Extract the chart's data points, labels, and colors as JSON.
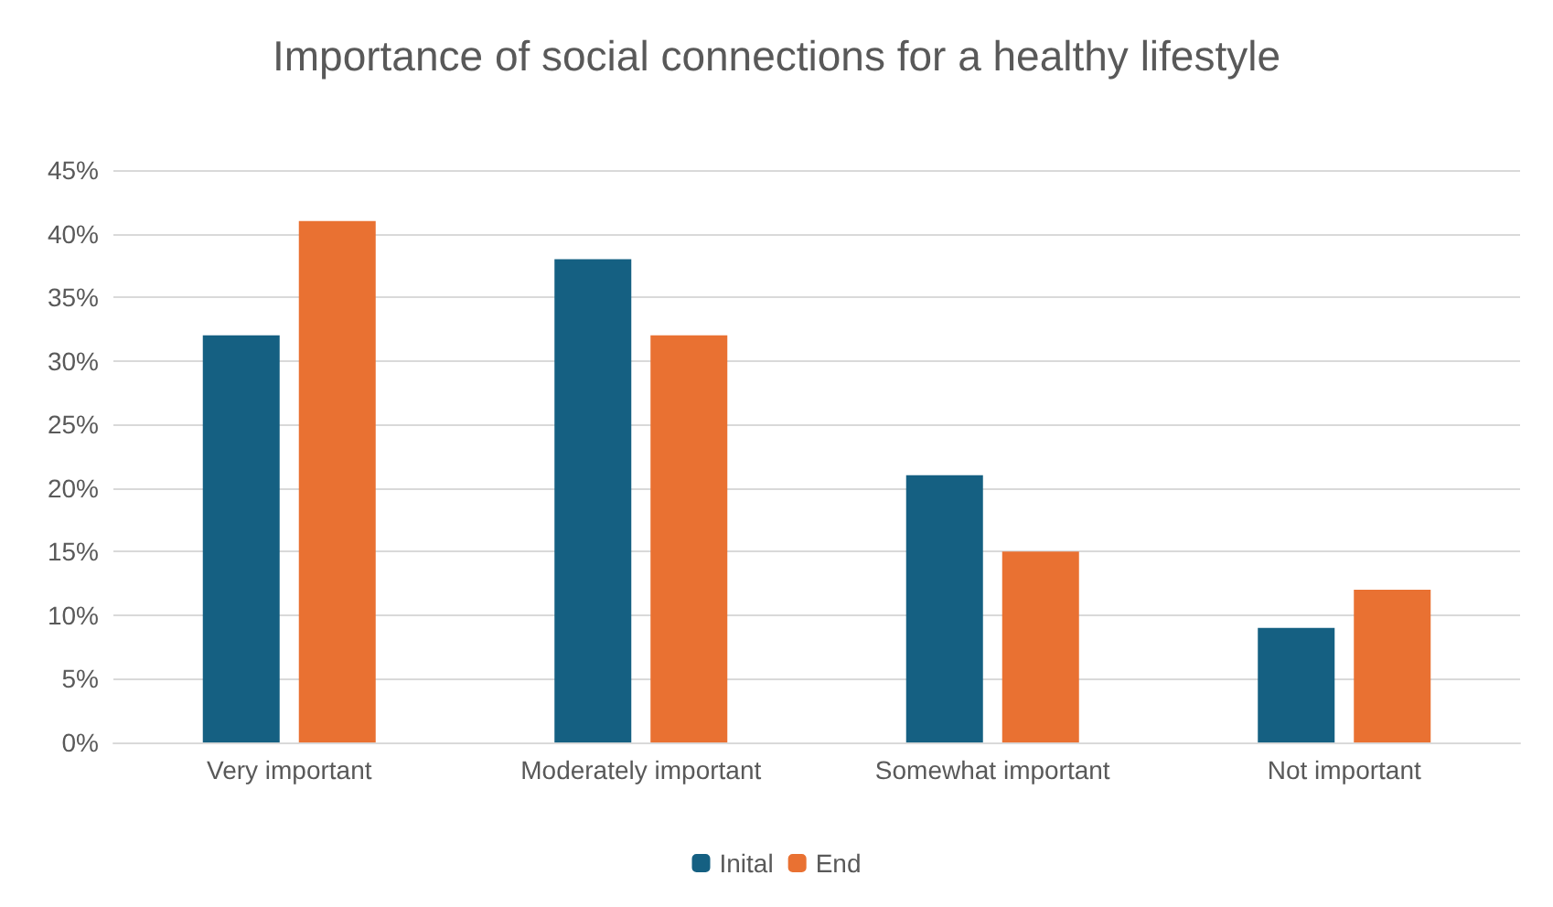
{
  "chart_data": {
    "type": "bar",
    "title": "Importance of social connections for a healthy lifestyle",
    "categories": [
      "Very important",
      "Moderately important",
      "Somewhat important",
      "Not important"
    ],
    "series": [
      {
        "name": "Inital",
        "color": "#156082",
        "values": [
          32,
          38,
          21,
          9
        ]
      },
      {
        "name": "End",
        "color": "#e97132",
        "values": [
          41,
          32,
          15,
          12
        ]
      }
    ],
    "ylim": [
      0,
      45
    ],
    "yticks": [
      {
        "value": 0,
        "label": "0%"
      },
      {
        "value": 5,
        "label": "5%"
      },
      {
        "value": 10,
        "label": "10%"
      },
      {
        "value": 15,
        "label": "15%"
      },
      {
        "value": 20,
        "label": "20%"
      },
      {
        "value": 25,
        "label": "25%"
      },
      {
        "value": 30,
        "label": "30%"
      },
      {
        "value": 35,
        "label": "35%"
      },
      {
        "value": 40,
        "label": "40%"
      },
      {
        "value": 45,
        "label": "45%"
      }
    ],
    "grid": "y",
    "legend": "bottom"
  }
}
